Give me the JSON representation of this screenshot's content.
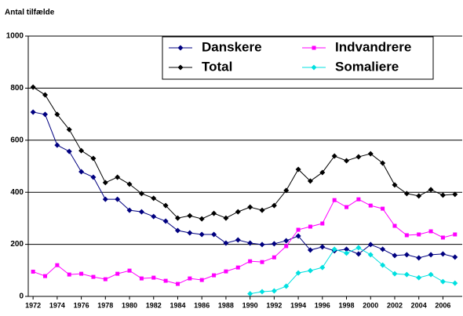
{
  "chart_data": {
    "type": "line",
    "title": "Antal tilfælde",
    "x": [
      1972,
      1973,
      1974,
      1975,
      1976,
      1977,
      1978,
      1979,
      1980,
      1981,
      1982,
      1983,
      1984,
      1985,
      1986,
      1987,
      1988,
      1989,
      1990,
      1991,
      1992,
      1993,
      1994,
      1995,
      1996,
      1997,
      1998,
      1999,
      2000,
      2001,
      2002,
      2003,
      2004,
      2005,
      2006,
      2007
    ],
    "series": [
      {
        "name": "Danskere",
        "color": "#000080",
        "marker": "diamond",
        "values": [
          708,
          699,
          581,
          557,
          479,
          458,
          373,
          373,
          331,
          325,
          307,
          289,
          253,
          244,
          238,
          238,
          205,
          217,
          205,
          199,
          202,
          214,
          232,
          178,
          190,
          175,
          181,
          163,
          199,
          181,
          157,
          160,
          148,
          160,
          163,
          151
        ]
      },
      {
        "name": "Indvandrere",
        "color": "#ff00ff",
        "marker": "square",
        "values": [
          95,
          78,
          120,
          84,
          87,
          75,
          66,
          87,
          99,
          69,
          72,
          60,
          48,
          69,
          63,
          81,
          96,
          111,
          135,
          132,
          150,
          193,
          256,
          268,
          280,
          370,
          343,
          373,
          349,
          337,
          271,
          235,
          238,
          250,
          226,
          238
        ]
      },
      {
        "name": "Total",
        "color": "#000000",
        "marker": "diamond",
        "values": [
          804,
          774,
          699,
          641,
          560,
          530,
          437,
          458,
          431,
          395,
          377,
          349,
          301,
          310,
          298,
          319,
          301,
          325,
          343,
          331,
          349,
          407,
          488,
          443,
          476,
          539,
          521,
          536,
          548,
          512,
          428,
          395,
          386,
          410,
          389,
          392
        ]
      },
      {
        "name": "Somaliere",
        "color": "#00e0e0",
        "marker": "diamond",
        "values": [
          null,
          null,
          null,
          null,
          null,
          null,
          null,
          null,
          null,
          null,
          null,
          null,
          null,
          null,
          null,
          null,
          null,
          null,
          10,
          18,
          21,
          39,
          90,
          99,
          111,
          181,
          166,
          187,
          160,
          120,
          87,
          84,
          72,
          84,
          57,
          51
        ]
      }
    ],
    "xlim": [
      1971.6,
      2007.6
    ],
    "xticks": [
      1972,
      1974,
      1976,
      1978,
      1980,
      1982,
      1984,
      1986,
      1988,
      1990,
      1992,
      1994,
      1996,
      1998,
      2000,
      2002,
      2004,
      2006
    ],
    "ylim": [
      0,
      1000
    ],
    "yticks": [
      0,
      200,
      400,
      600,
      800,
      1000
    ],
    "grid": true,
    "legend": "top"
  }
}
